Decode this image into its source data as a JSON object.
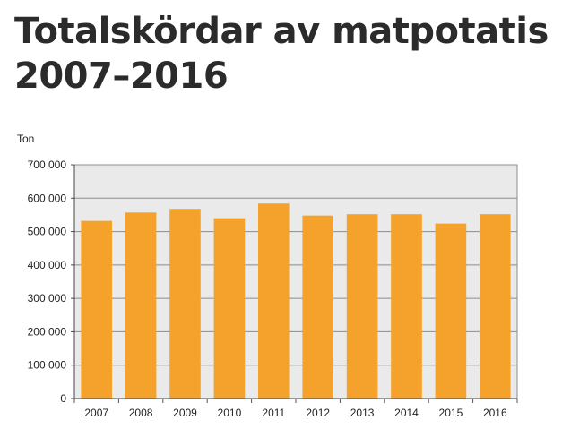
{
  "title_line1": "Totalskördar av matpotatis",
  "title_line2": "2007–2016",
  "chart_data": {
    "type": "bar",
    "title": "Totalskördar av matpotatis 2007–2016",
    "ylabel": "Ton",
    "xlabel": "",
    "categories": [
      "2007",
      "2008",
      "2009",
      "2010",
      "2011",
      "2012",
      "2013",
      "2014",
      "2015",
      "2016"
    ],
    "values": [
      532000,
      557000,
      568000,
      540000,
      584000,
      548000,
      552000,
      552000,
      524000,
      552000
    ],
    "ylim": [
      0,
      700000
    ],
    "yticks": [
      0,
      100000,
      200000,
      300000,
      400000,
      500000,
      600000,
      700000
    ],
    "ytick_labels": [
      "0",
      "100 000",
      "200 000",
      "300 000",
      "400 000",
      "500 000",
      "600 000",
      "700 000"
    ],
    "grid": true,
    "legend": "none",
    "bar_color": "#F4A22B",
    "plot_background": "#EAEAEA"
  }
}
